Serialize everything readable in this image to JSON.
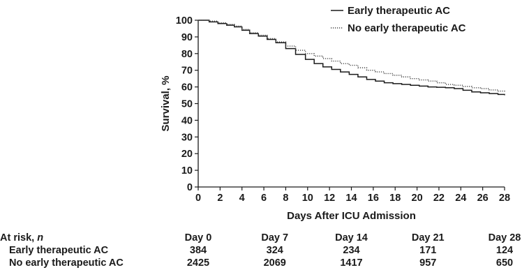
{
  "chart_data": {
    "type": "line",
    "title": "",
    "xlabel": "Days After ICU Admission",
    "ylabel": "Survival, %",
    "xlim": [
      0,
      28
    ],
    "ylim": [
      0,
      100
    ],
    "xticks": [
      0,
      2,
      4,
      6,
      8,
      10,
      12,
      14,
      16,
      18,
      20,
      22,
      24,
      26,
      28
    ],
    "yticks": [
      0,
      10,
      20,
      30,
      40,
      50,
      60,
      70,
      80,
      90,
      100
    ],
    "grid": false,
    "legend_position": "top-right",
    "series": [
      {
        "name": "Early therapeutic AC",
        "line_style": "solid",
        "color": "#1a1a1a",
        "x": [
          0,
          1,
          1.8,
          2.6,
          3.3,
          4,
          4.7,
          5.5,
          6.3,
          7.1,
          8,
          8.9,
          9.8,
          10.6,
          11.4,
          12.2,
          13,
          13.8,
          14.6,
          15.4,
          16.2,
          17,
          17.8,
          18.6,
          19.4,
          20.2,
          21,
          21.8,
          22.6,
          23.4,
          24.2,
          25,
          25.8,
          26.6,
          27.4,
          28
        ],
        "y": [
          100,
          99,
          98,
          97,
          96,
          94,
          92,
          90.5,
          88.5,
          86.5,
          83,
          79.5,
          76.5,
          74,
          72,
          70.5,
          69,
          67.5,
          66,
          64.5,
          63.5,
          62.5,
          62,
          61.5,
          61,
          60.5,
          60,
          59.8,
          59.5,
          59,
          58,
          57,
          56.5,
          56,
          55.5,
          55
        ]
      },
      {
        "name": "No early therapeutic AC",
        "line_style": "dotted",
        "color": "#444444",
        "x": [
          0,
          1,
          1.8,
          2.6,
          3.3,
          4,
          4.7,
          5.5,
          6.3,
          7.1,
          8,
          8.9,
          9.8,
          10.6,
          11.4,
          12.2,
          13,
          13.8,
          14.6,
          15.4,
          16.2,
          17,
          17.8,
          18.6,
          19.4,
          20.2,
          21,
          21.8,
          22.6,
          23.4,
          24.2,
          25,
          25.8,
          26.6,
          27.4,
          28
        ],
        "y": [
          100,
          99.5,
          98.5,
          97.5,
          96.5,
          94.5,
          92.5,
          91,
          89,
          87,
          84.5,
          82,
          80,
          78.5,
          77,
          75.5,
          74,
          73,
          71.5,
          70,
          69,
          68,
          67,
          66,
          65,
          64.2,
          63.5,
          62.5,
          61.5,
          61,
          60.3,
          59.5,
          59,
          58.2,
          57.5,
          57
        ]
      }
    ]
  },
  "risk_table": {
    "header_label": "At risk, ",
    "header_unit": "n",
    "timepoints": [
      {
        "label": "Day 0",
        "day": 0
      },
      {
        "label": "Day 7",
        "day": 7
      },
      {
        "label": "Day 14",
        "day": 14
      },
      {
        "label": "Day 21",
        "day": 21
      },
      {
        "label": "Day 28",
        "day": 28
      }
    ],
    "rows": [
      {
        "label": "Early therapeutic AC",
        "values": [
          "384",
          "324",
          "234",
          "171",
          "124"
        ]
      },
      {
        "label": "No early therapeutic AC",
        "values": [
          "2425",
          "2069",
          "1417",
          "957",
          "650"
        ]
      }
    ]
  }
}
